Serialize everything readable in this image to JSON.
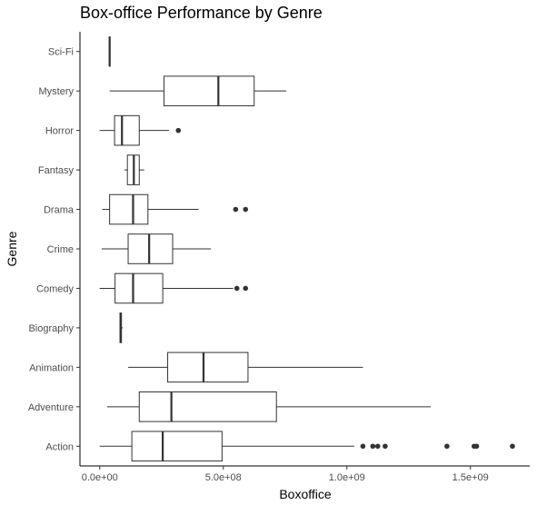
{
  "chart_data": {
    "type": "boxplot",
    "title": "Box-office Performance by Genre",
    "xlabel": "Boxoffice",
    "ylabel": "Genre",
    "orientation": "horizontal",
    "xlim": [
      -80000000,
      1740000000
    ],
    "xticks": [
      0,
      500000000,
      1000000000,
      1500000000
    ],
    "xtick_labels": [
      "0.0e+00",
      "5.0e+08",
      "1.0e+09",
      "1.5e+09"
    ],
    "grid": false,
    "legend": "none",
    "box_color": "#333333",
    "categories": [
      "Action",
      "Adventure",
      "Animation",
      "Biography",
      "Comedy",
      "Crime",
      "Drama",
      "Fantasy",
      "Horror",
      "Mystery",
      "Sci-Fi"
    ],
    "boxes": [
      {
        "genre": "Action",
        "whisker_low": 0,
        "q1": 130000000,
        "median": 255000000,
        "q3": 495000000,
        "whisker_high": 1030000000,
        "outliers": [
          1065000000,
          1105000000,
          1125000000,
          1155000000,
          1405000000,
          1515000000,
          1525000000,
          1670000000
        ]
      },
      {
        "genre": "Adventure",
        "whisker_low": 30000000,
        "q1": 160000000,
        "median": 290000000,
        "q3": 715000000,
        "whisker_high": 1340000000,
        "outliers": []
      },
      {
        "genre": "Animation",
        "whisker_low": 115000000,
        "q1": 275000000,
        "median": 420000000,
        "q3": 600000000,
        "whisker_high": 1065000000,
        "outliers": []
      },
      {
        "genre": "Biography",
        "whisker_low": 80000000,
        "q1": 82000000,
        "median": 85000000,
        "q3": 88000000,
        "whisker_high": 93000000,
        "outliers": []
      },
      {
        "genre": "Comedy",
        "whisker_low": 0,
        "q1": 62000000,
        "median": 135000000,
        "q3": 255000000,
        "whisker_high": 540000000,
        "outliers": [
          555000000,
          590000000
        ]
      },
      {
        "genre": "Crime",
        "whisker_low": 8000000,
        "q1": 115000000,
        "median": 200000000,
        "q3": 295000000,
        "whisker_high": 450000000,
        "outliers": []
      },
      {
        "genre": "Drama",
        "whisker_low": 10000000,
        "q1": 40000000,
        "median": 135000000,
        "q3": 195000000,
        "whisker_high": 400000000,
        "outliers": [
          550000000,
          590000000
        ]
      },
      {
        "genre": "Fantasy",
        "whisker_low": 100000000,
        "q1": 112000000,
        "median": 138000000,
        "q3": 160000000,
        "whisker_high": 180000000,
        "outliers": []
      },
      {
        "genre": "Horror",
        "whisker_low": 0,
        "q1": 60000000,
        "median": 90000000,
        "q3": 160000000,
        "whisker_high": 280000000,
        "outliers": [
          318000000
        ]
      },
      {
        "genre": "Mystery",
        "whisker_low": 40000000,
        "q1": 260000000,
        "median": 480000000,
        "q3": 625000000,
        "whisker_high": 755000000,
        "outliers": []
      },
      {
        "genre": "Sci-Fi",
        "whisker_low": 40000000,
        "q1": 40000000,
        "median": 40000000,
        "q3": 40000000,
        "whisker_high": 40000000,
        "outliers": []
      }
    ]
  }
}
